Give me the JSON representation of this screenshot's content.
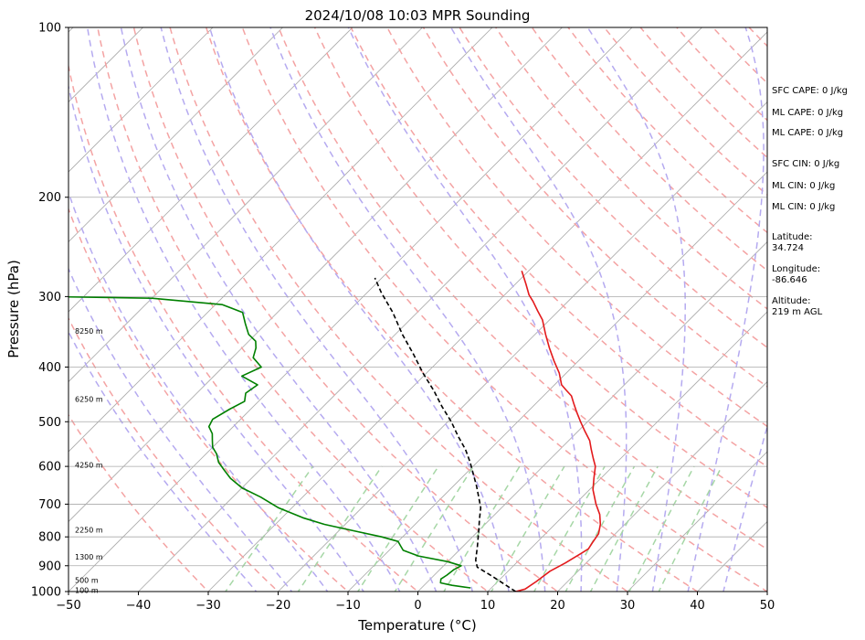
{
  "chart_data": {
    "type": "skew-t",
    "title": "2024/10/08 10:03 MPR Sounding",
    "xlabel": "Temperature (°C)",
    "ylabel": "Pressure (hPa)",
    "xlim": [
      -50,
      50
    ],
    "ylim": [
      1000,
      100
    ],
    "y_scale": "log",
    "grid": true,
    "x_ticks": [
      "−50",
      "−40",
      "−30",
      "−20",
      "−10",
      "0",
      "10",
      "20",
      "30",
      "40",
      "50"
    ],
    "x_tick_values": [
      -50,
      -40,
      -30,
      -20,
      -10,
      0,
      10,
      20,
      30,
      40,
      50
    ],
    "y_ticks": [
      "100",
      "200",
      "300",
      "400",
      "500",
      "600",
      "700",
      "800",
      "900",
      "1000"
    ],
    "y_tick_values": [
      100,
      200,
      300,
      400,
      500,
      600,
      700,
      800,
      900,
      1000
    ],
    "colors": {
      "temperature": "#e31a1c",
      "dewpoint": "#008000",
      "parcel": "#000000",
      "isotherm": "#aaaaaa",
      "dry_adiabat": "#f4a3a3",
      "moist_adiabat": "#b5aaf0",
      "mixing_ratio": "#a6d7a6"
    },
    "series": [
      {
        "key": "temperature",
        "points": [
          [
            14.0,
            1000
          ],
          [
            15.0,
            990
          ],
          [
            15.5,
            960
          ],
          [
            16.0,
            920
          ],
          [
            17.0,
            890
          ],
          [
            17.8,
            860
          ],
          [
            18.3,
            840
          ],
          [
            18.0,
            820
          ],
          [
            17.6,
            790
          ],
          [
            16.5,
            760
          ],
          [
            15.0,
            730
          ],
          [
            13.0,
            700
          ],
          [
            10.5,
            660
          ],
          [
            9.0,
            630
          ],
          [
            7.5,
            600
          ],
          [
            6.0,
            580
          ],
          [
            4.5,
            560
          ],
          [
            3.0,
            540
          ],
          [
            1.0,
            520
          ],
          [
            -1.0,
            500
          ],
          [
            -3.0,
            480
          ],
          [
            -4.5,
            465
          ],
          [
            -6.0,
            450
          ],
          [
            -7.5,
            440
          ],
          [
            -9.0,
            430
          ],
          [
            -11.0,
            410
          ],
          [
            -13.5,
            390
          ],
          [
            -16.0,
            370
          ],
          [
            -18.5,
            350
          ],
          [
            -21.0,
            330
          ],
          [
            -23.0,
            318
          ],
          [
            -25.0,
            306
          ],
          [
            -26.5,
            298
          ],
          [
            -28.5,
            285
          ],
          [
            -31.0,
            270
          ]
        ]
      },
      {
        "key": "dewpoint",
        "points": [
          [
            7.0,
            985
          ],
          [
            4.0,
            975
          ],
          [
            2.0,
            965
          ],
          [
            1.5,
            950
          ],
          [
            1.8,
            935
          ],
          [
            2.0,
            915
          ],
          [
            2.5,
            900
          ],
          [
            0.0,
            885
          ],
          [
            -5.0,
            865
          ],
          [
            -8.0,
            845
          ],
          [
            -9.0,
            830
          ],
          [
            -10.0,
            815
          ],
          [
            -13.0,
            800
          ],
          [
            -18.0,
            780
          ],
          [
            -23.0,
            760
          ],
          [
            -27.0,
            740
          ],
          [
            -32.0,
            710
          ],
          [
            -36.0,
            680
          ],
          [
            -40.0,
            655
          ],
          [
            -43.0,
            630
          ],
          [
            -45.0,
            610
          ],
          [
            -47.0,
            590
          ],
          [
            -48.5,
            570
          ],
          [
            -50.0,
            555
          ],
          [
            -51.0,
            540
          ],
          [
            -52.0,
            525
          ],
          [
            -53.5,
            510
          ],
          [
            -54.0,
            495
          ],
          [
            -53.0,
            475
          ],
          [
            -52.0,
            460
          ],
          [
            -53.0,
            445
          ],
          [
            -52.5,
            430
          ],
          [
            -56.0,
            415
          ],
          [
            -54.5,
            400
          ],
          [
            -57.0,
            385
          ],
          [
            -58.0,
            370
          ],
          [
            -59.0,
            360
          ],
          [
            -61.0,
            350
          ],
          [
            -63.0,
            335
          ],
          [
            -65.0,
            320
          ],
          [
            -69.0,
            310
          ],
          [
            -80.0,
            302
          ],
          [
            -95.0,
            300
          ]
        ]
      },
      {
        "key": "parcel",
        "points": [
          [
            14.0,
            1000
          ],
          [
            8.5,
            940
          ],
          [
            5.0,
            905
          ],
          [
            3.8,
            880
          ],
          [
            2.0,
            830
          ],
          [
            0.0,
            780
          ],
          [
            -1.5,
            745
          ],
          [
            -3.0,
            710
          ],
          [
            -4.8,
            680
          ],
          [
            -6.7,
            650
          ],
          [
            -8.8,
            620
          ],
          [
            -11.0,
            590
          ],
          [
            -13.5,
            560
          ],
          [
            -16.5,
            530
          ],
          [
            -19.5,
            500
          ],
          [
            -23.0,
            470
          ],
          [
            -26.5,
            440
          ],
          [
            -30.5,
            410
          ],
          [
            -34.5,
            380
          ],
          [
            -39.0,
            350
          ],
          [
            -43.5,
            320
          ],
          [
            -48.0,
            295
          ],
          [
            -51.0,
            278
          ]
        ]
      }
    ],
    "height_labels": [
      {
        "label": "100 m",
        "p": 995
      },
      {
        "label": "500 m",
        "p": 955
      },
      {
        "label": "1300 m",
        "p": 868
      },
      {
        "label": "2250 m",
        "p": 777
      },
      {
        "label": "4250 m",
        "p": 596
      },
      {
        "label": "6250 m",
        "p": 456
      },
      {
        "label": "8250 m",
        "p": 345
      }
    ],
    "annotations": [
      "SFC CAPE: 0 J/kg",
      "ML CAPE: 0 J/kg",
      "ML CAPE: 0 J/kg",
      "SFC CIN: 0 J/kg",
      "ML CIN: 0 J/kg",
      "ML CIN: 0 J/kg"
    ],
    "location": {
      "latitude_label": "Latitude:",
      "latitude": "34.724",
      "longitude_label": "Longitude:",
      "longitude": "-86.646",
      "altitude_label": "Altitude:",
      "altitude": "219 m AGL"
    }
  }
}
